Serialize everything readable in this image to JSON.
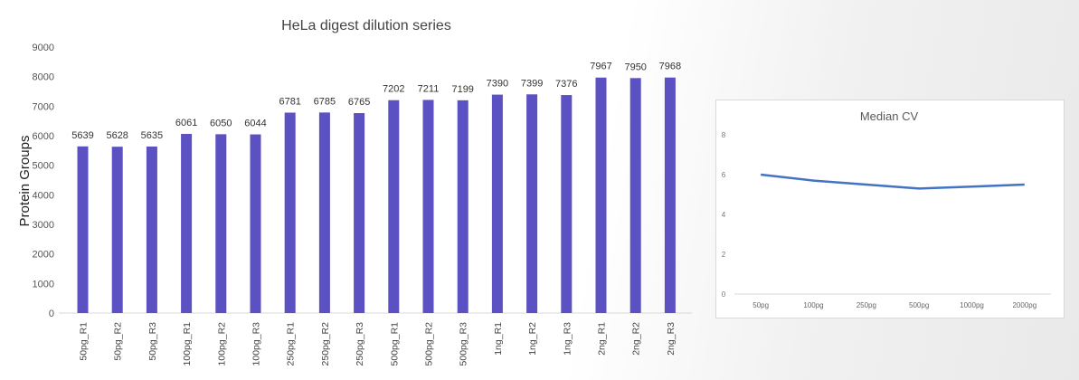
{
  "chart_data": [
    {
      "type": "bar",
      "title": "HeLa digest dilution series",
      "xlabel": "",
      "ylabel": "Protein Groups",
      "ylim": [
        0,
        9000
      ],
      "yticks": [
        0,
        1000,
        2000,
        3000,
        4000,
        5000,
        6000,
        7000,
        8000,
        9000
      ],
      "categories": [
        "50pg_R1",
        "50pg_R2",
        "50pg_R3",
        "100pg_R1",
        "100pg_R2",
        "100pg_R3",
        "250pg_R1",
        "250pg_R2",
        "250pg_R3",
        "500pg_R1",
        "500pg_R2",
        "500pg_R3",
        "1ng_R1",
        "1ng_R2",
        "1ng_R3",
        "2ng_R1",
        "2ng_R2",
        "2ng_R3"
      ],
      "values": [
        5639,
        5628,
        5635,
        6061,
        6050,
        6044,
        6781,
        6785,
        6765,
        7202,
        7211,
        7199,
        7390,
        7399,
        7376,
        7967,
        7950,
        7968
      ],
      "color": "#5b51c2",
      "grid": false
    },
    {
      "type": "line",
      "title": "Median CV",
      "ylim": [
        0,
        8
      ],
      "yticks": [
        0,
        2,
        4,
        6,
        8
      ],
      "categories": [
        "50pg",
        "100pg",
        "250pg",
        "500pg",
        "1000pg",
        "2000pg"
      ],
      "values": [
        6.0,
        5.7,
        5.5,
        5.3,
        5.4,
        5.5
      ],
      "color": "#4472c4",
      "grid": false
    }
  ]
}
